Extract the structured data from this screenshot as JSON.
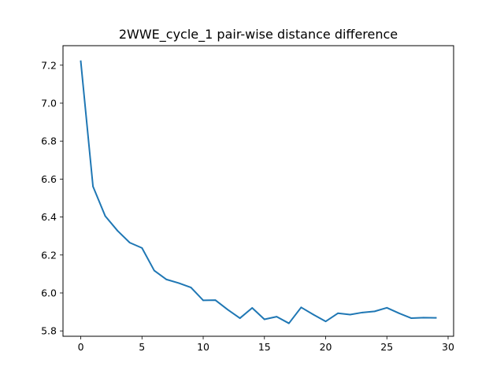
{
  "chart_data": {
    "type": "line",
    "title": "2WWE_cycle_1 pair-wise distance difference",
    "xlabel": "",
    "ylabel": "",
    "xlim": [
      -1.45,
      30.45
    ],
    "ylim": [
      5.7718,
      7.3028
    ],
    "x_ticks": [
      0,
      5,
      10,
      15,
      20,
      25,
      30
    ],
    "y_ticks": [
      5.8,
      6.0,
      6.2,
      6.4,
      6.6,
      6.8,
      7.0,
      7.2
    ],
    "y_tick_labels": [
      "5.8",
      "6.0",
      "6.2",
      "6.4",
      "6.6",
      "6.8",
      "7.0",
      "7.2"
    ],
    "grid": false,
    "legend": "none",
    "series": [
      {
        "name": "pair-wise distance difference",
        "color": "#1f77b4",
        "x": [
          0,
          1,
          2,
          3,
          4,
          5,
          6,
          7,
          8,
          9,
          10,
          11,
          12,
          13,
          14,
          15,
          16,
          17,
          18,
          19,
          20,
          21,
          22,
          23,
          24,
          25,
          26,
          27,
          28,
          29
        ],
        "values": [
          7.221,
          6.561,
          6.405,
          6.328,
          6.265,
          6.237,
          6.118,
          6.071,
          6.052,
          6.029,
          5.961,
          5.962,
          5.912,
          5.867,
          5.921,
          5.861,
          5.875,
          5.84,
          5.924,
          5.886,
          5.85,
          5.893,
          5.886,
          5.897,
          5.903,
          5.922,
          5.893,
          5.867,
          5.87,
          5.869
        ]
      }
    ]
  }
}
